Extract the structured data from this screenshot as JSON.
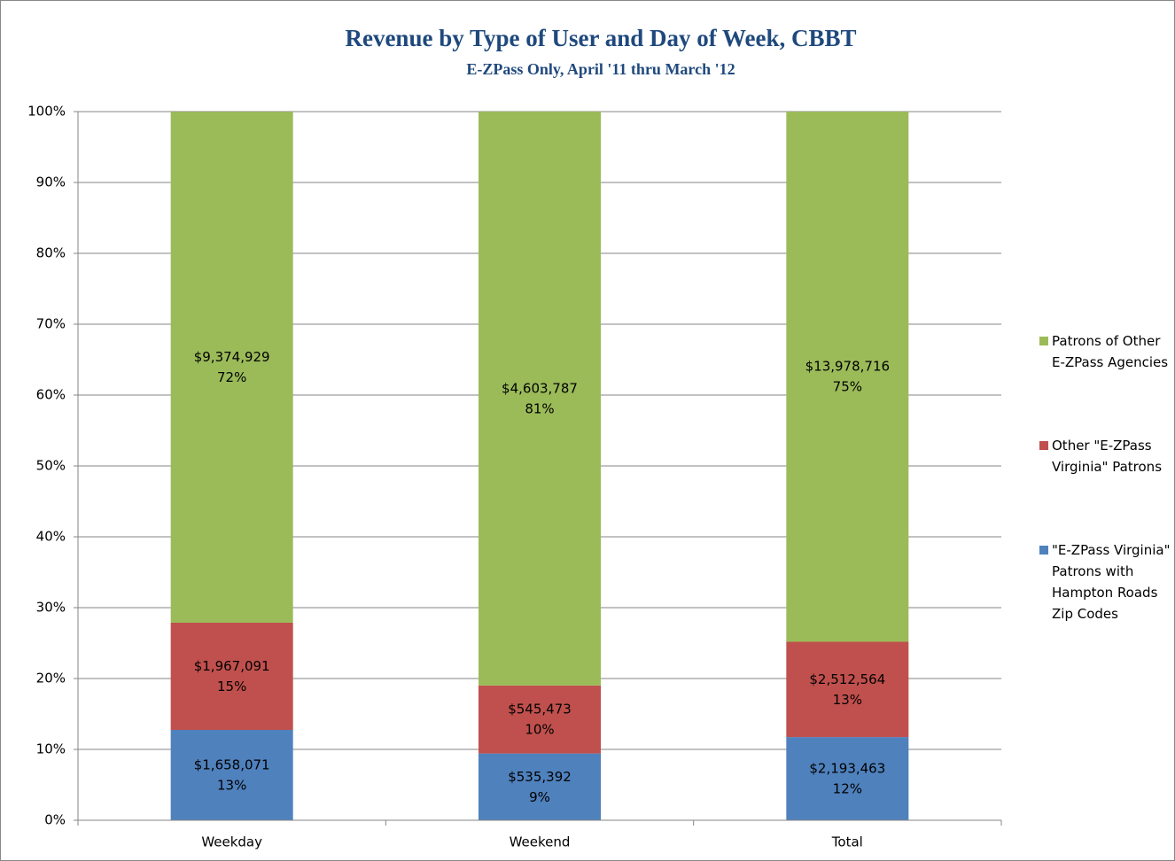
{
  "chart_data": {
    "type": "stacked_bar",
    "title": "Revenue by Type of User and Day of Week, CBBT",
    "subtitle": "E-ZPass Only, April '11 thru March '12",
    "categories": [
      "Weekday",
      "Weekend",
      "Total"
    ],
    "series": [
      {
        "name": "\"E-ZPass Virginia\" Patrons with Hampton Roads Zip Codes",
        "color": "#4f81bd",
        "values": [
          12.75,
          9.42,
          11.74
        ],
        "value_labels": [
          "13%",
          "9%",
          "12%"
        ],
        "amount_labels": [
          "$1,658,071",
          "$535,392",
          "$2,193,463"
        ]
      },
      {
        "name": "Other \"E-ZPass Virginia\" Patrons",
        "color": "#c0504d",
        "values": [
          15.13,
          9.6,
          13.45
        ],
        "value_labels": [
          "15%",
          "10%",
          "13%"
        ],
        "amount_labels": [
          "$1,967,091",
          "$545,473",
          "$2,512,564"
        ]
      },
      {
        "name": "Patrons of Other E-ZPass Agencies",
        "color": "#9bbb59",
        "values": [
          72.11,
          80.99,
          74.81
        ],
        "value_labels": [
          "72%",
          "81%",
          "75%"
        ],
        "amount_labels": [
          "$9,374,929",
          "$4,603,787",
          "$13,978,716"
        ]
      }
    ],
    "ylim": [
      0,
      100
    ],
    "yticks": [
      {
        "value": 0,
        "label": "0%"
      },
      {
        "value": 10,
        "label": "10%"
      },
      {
        "value": 20,
        "label": "20%"
      },
      {
        "value": 30,
        "label": "30%"
      },
      {
        "value": 40,
        "label": "40%"
      },
      {
        "value": 50,
        "label": "50%"
      },
      {
        "value": 60,
        "label": "60%"
      },
      {
        "value": 70,
        "label": "70%"
      },
      {
        "value": 80,
        "label": "80%"
      },
      {
        "value": 90,
        "label": "90%"
      },
      {
        "value": 100,
        "label": "100%"
      }
    ],
    "grid": true,
    "legend": "right"
  }
}
